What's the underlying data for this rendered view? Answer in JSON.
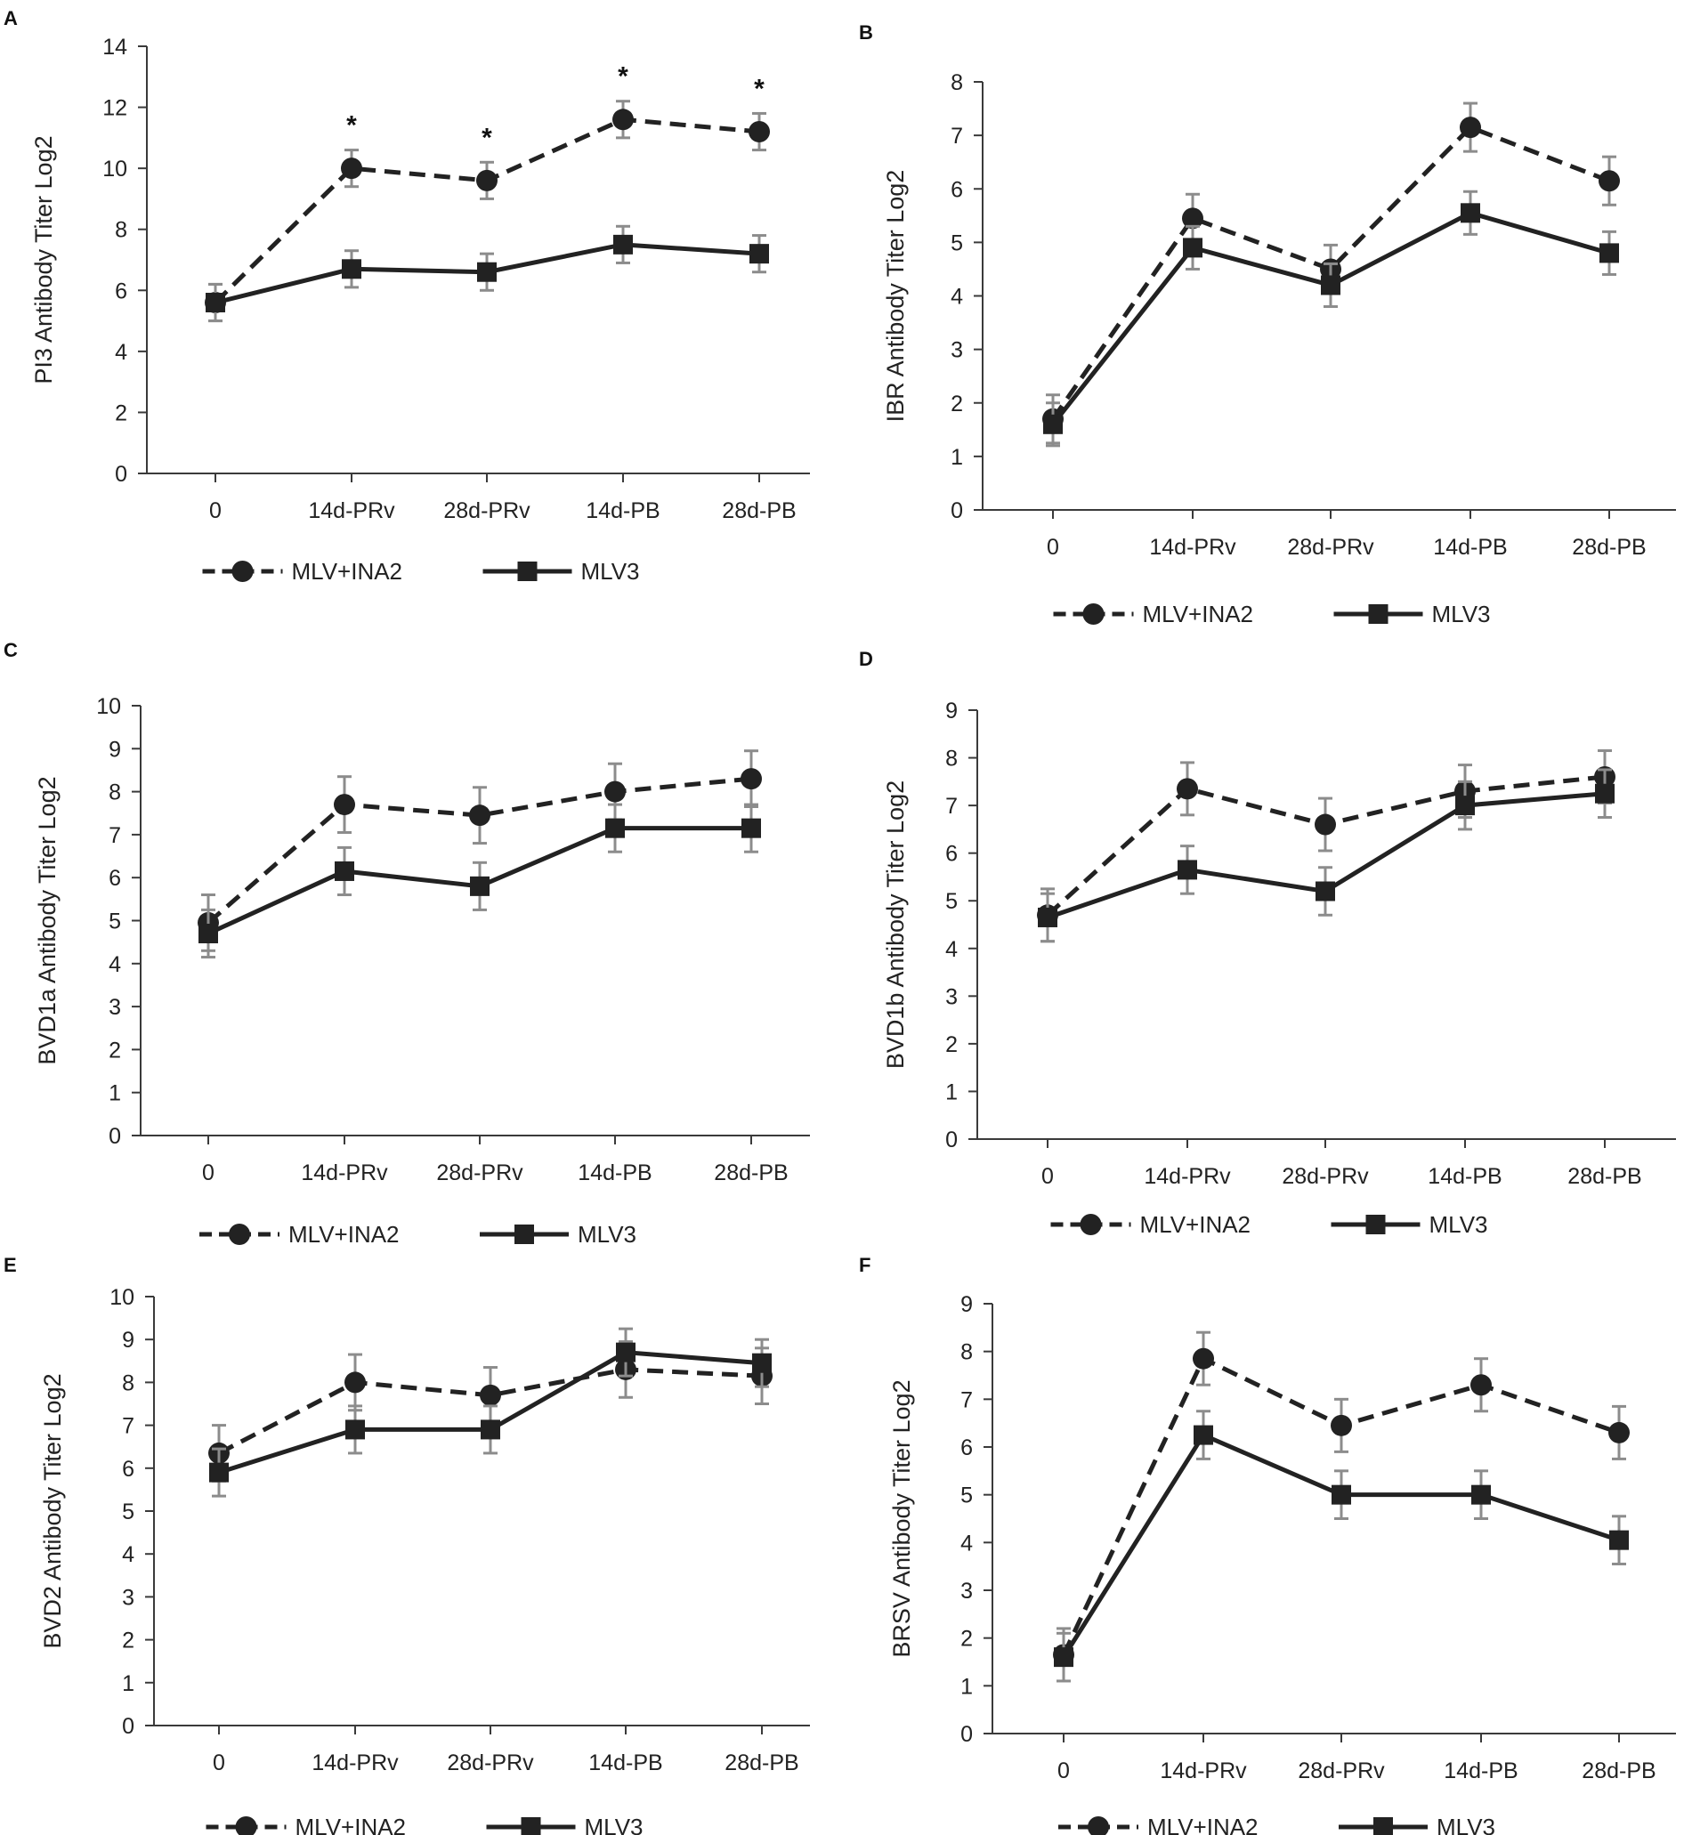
{
  "chart_data": [
    {
      "panel": "A",
      "type": "line",
      "categories": [
        "0",
        "14d-PRv",
        "28d-PRv",
        "14d-PB",
        "28d-PB"
      ],
      "ylabel": "PI3 Antibody Titer Log2",
      "ylim": [
        0,
        14
      ],
      "yticks": [
        0,
        2,
        4,
        6,
        8,
        10,
        12,
        14
      ],
      "series": [
        {
          "name": "MLV+INA2",
          "marker": "circle",
          "dashed": true,
          "values": [
            5.6,
            10.0,
            9.6,
            11.6,
            11.2
          ],
          "errors": [
            0.6,
            0.6,
            0.6,
            0.6,
            0.6
          ]
        },
        {
          "name": "MLV3",
          "marker": "square",
          "dashed": false,
          "values": [
            5.6,
            6.7,
            6.6,
            7.5,
            7.2
          ],
          "errors": [
            0.6,
            0.6,
            0.6,
            0.6,
            0.6
          ]
        }
      ],
      "annotations": [
        "",
        "*",
        "*",
        "*",
        "*"
      ]
    },
    {
      "panel": "B",
      "type": "line",
      "categories": [
        "0",
        "14d-PRv",
        "28d-PRv",
        "14d-PB",
        "28d-PB"
      ],
      "ylabel": "IBR Antibody Titer Log2",
      "ylim": [
        0,
        8
      ],
      "yticks": [
        0,
        1,
        2,
        3,
        4,
        5,
        6,
        7,
        8
      ],
      "series": [
        {
          "name": "MLV+INA2",
          "marker": "circle",
          "dashed": true,
          "values": [
            1.7,
            5.45,
            4.5,
            7.15,
            6.15
          ],
          "errors": [
            0.45,
            0.45,
            0.45,
            0.45,
            0.45
          ]
        },
        {
          "name": "MLV3",
          "marker": "square",
          "dashed": false,
          "values": [
            1.6,
            4.9,
            4.2,
            5.55,
            4.8
          ],
          "errors": [
            0.4,
            0.4,
            0.4,
            0.4,
            0.4
          ]
        }
      ],
      "annotations": [
        "",
        "",
        "",
        "",
        ""
      ]
    },
    {
      "panel": "C",
      "type": "line",
      "categories": [
        "0",
        "14d-PRv",
        "28d-PRv",
        "14d-PB",
        "28d-PB"
      ],
      "ylabel": "BVD1a Antibody Titer Log2",
      "ylim": [
        0,
        10
      ],
      "yticks": [
        0,
        1,
        2,
        3,
        4,
        5,
        6,
        7,
        8,
        9,
        10
      ],
      "series": [
        {
          "name": "MLV+INA2",
          "marker": "circle",
          "dashed": true,
          "values": [
            4.95,
            7.7,
            7.45,
            8.0,
            8.3
          ],
          "errors": [
            0.65,
            0.65,
            0.65,
            0.65,
            0.65
          ]
        },
        {
          "name": "MLV3",
          "marker": "square",
          "dashed": false,
          "values": [
            4.7,
            6.15,
            5.8,
            7.15,
            7.15
          ],
          "errors": [
            0.55,
            0.55,
            0.55,
            0.55,
            0.55
          ]
        }
      ],
      "annotations": [
        "",
        "",
        "",
        "",
        ""
      ]
    },
    {
      "panel": "D",
      "type": "line",
      "categories": [
        "0",
        "14d-PRv",
        "28d-PRv",
        "14d-PB",
        "28d-PB"
      ],
      "ylabel": "BVD1b Antibody Titer Log2",
      "ylim": [
        0,
        9
      ],
      "yticks": [
        0,
        1,
        2,
        3,
        4,
        5,
        6,
        7,
        8,
        9
      ],
      "series": [
        {
          "name": "MLV+INA2",
          "marker": "circle",
          "dashed": true,
          "values": [
            4.7,
            7.35,
            6.6,
            7.3,
            7.6
          ],
          "errors": [
            0.55,
            0.55,
            0.55,
            0.55,
            0.55
          ]
        },
        {
          "name": "MLV3",
          "marker": "square",
          "dashed": false,
          "values": [
            4.65,
            5.65,
            5.2,
            7.0,
            7.25
          ],
          "errors": [
            0.5,
            0.5,
            0.5,
            0.5,
            0.5
          ]
        }
      ],
      "annotations": [
        "",
        "",
        "",
        "",
        ""
      ]
    },
    {
      "panel": "E",
      "type": "line",
      "categories": [
        "0",
        "14d-PRv",
        "28d-PRv",
        "14d-PB",
        "28d-PB"
      ],
      "ylabel": "BVD2 Antibody Titer Log2",
      "ylim": [
        0,
        10
      ],
      "yticks": [
        0,
        1,
        2,
        3,
        4,
        5,
        6,
        7,
        8,
        9,
        10
      ],
      "series": [
        {
          "name": "MLV+INA2",
          "marker": "circle",
          "dashed": true,
          "values": [
            6.35,
            8.0,
            7.7,
            8.3,
            8.15
          ],
          "errors": [
            0.65,
            0.65,
            0.65,
            0.65,
            0.65
          ]
        },
        {
          "name": "MLV3",
          "marker": "square",
          "dashed": false,
          "values": [
            5.9,
            6.9,
            6.9,
            8.7,
            8.45
          ],
          "errors": [
            0.55,
            0.55,
            0.55,
            0.55,
            0.55
          ]
        }
      ],
      "annotations": [
        "",
        "",
        "",
        "",
        ""
      ]
    },
    {
      "panel": "F",
      "type": "line",
      "categories": [
        "0",
        "14d-PRv",
        "28d-PRv",
        "14d-PB",
        "28d-PB"
      ],
      "ylabel": "BRSV Antibody Titer Log2",
      "ylim": [
        0,
        9
      ],
      "yticks": [
        0,
        1,
        2,
        3,
        4,
        5,
        6,
        7,
        8,
        9
      ],
      "series": [
        {
          "name": "MLV+INA2",
          "marker": "circle",
          "dashed": true,
          "values": [
            1.65,
            7.85,
            6.45,
            7.3,
            6.3
          ],
          "errors": [
            0.55,
            0.55,
            0.55,
            0.55,
            0.55
          ]
        },
        {
          "name": "MLV3",
          "marker": "square",
          "dashed": false,
          "values": [
            1.6,
            6.25,
            5.0,
            5.0,
            4.05
          ],
          "errors": [
            0.5,
            0.5,
            0.5,
            0.5,
            0.5
          ]
        }
      ],
      "annotations": [
        "",
        "",
        "",
        "",
        ""
      ]
    }
  ]
}
